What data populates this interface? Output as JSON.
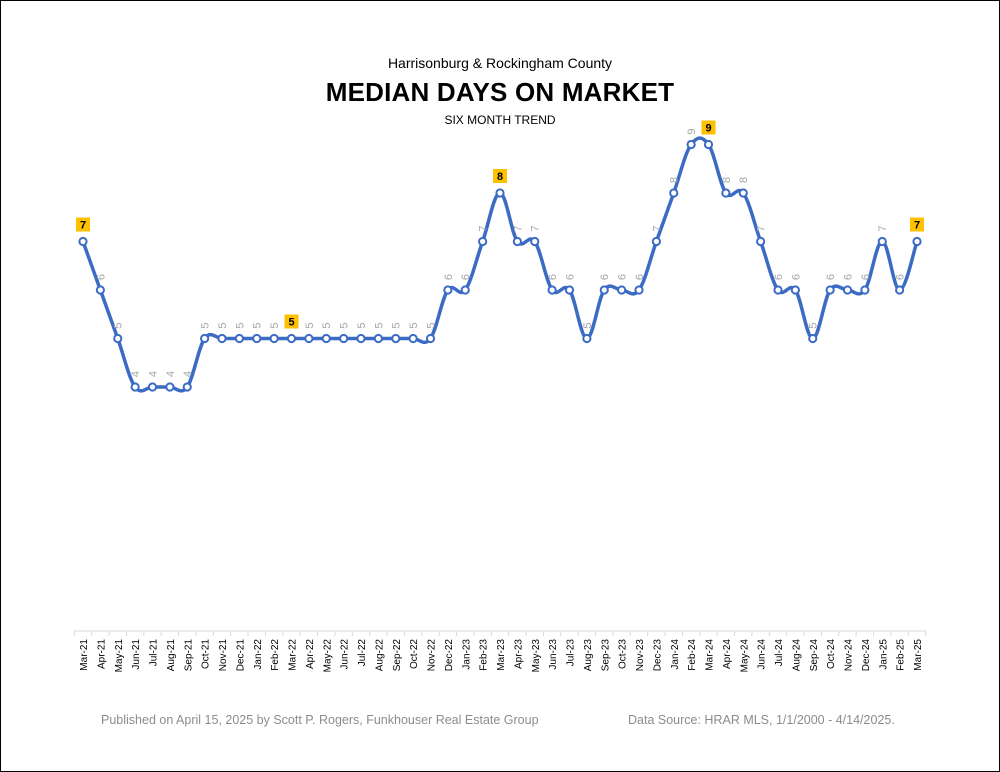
{
  "header": {
    "subtitle": "Harrisonburg & Rockingham County",
    "title": "MEDIAN DAYS ON MARKET",
    "trend_label": "SIX MONTH TREND"
  },
  "footer": {
    "published": "Published on April 15, 2025 by Scott P. Rogers, Funkhouser Real Estate Group",
    "source": "Data Source: HRAR MLS, 1/1/2000 - 4/14/2025."
  },
  "colors": {
    "line": "#3B6BC4",
    "highlight_fill": "#FFC000",
    "label_gray": "#A6A6A6",
    "axis": "#D9D9D9"
  },
  "chart_data": {
    "type": "line",
    "title": "MEDIAN DAYS ON MARKET",
    "subtitle": "SIX MONTH TREND",
    "xlabel": "",
    "ylabel": "",
    "ylim": [
      0,
      10
    ],
    "grid": false,
    "legend": "none",
    "categories": [
      "Mar-21",
      "Apr-21",
      "May-21",
      "Jun-21",
      "Jul-21",
      "Aug-21",
      "Sep-21",
      "Oct-21",
      "Nov-21",
      "Dec-21",
      "Jan-22",
      "Feb-22",
      "Mar-22",
      "Apr-22",
      "May-22",
      "Jun-22",
      "Jul-22",
      "Aug-22",
      "Sep-22",
      "Oct-22",
      "Nov-22",
      "Dec-22",
      "Jan-23",
      "Feb-23",
      "Mar-23",
      "Apr-23",
      "May-23",
      "Jun-23",
      "Jul-23",
      "Aug-23",
      "Sep-23",
      "Oct-23",
      "Nov-23",
      "Dec-23",
      "Jan-24",
      "Feb-24",
      "Mar-24",
      "Apr-24",
      "May-24",
      "Jun-24",
      "Jul-24",
      "Aug-24",
      "Sep-24",
      "Oct-24",
      "Nov-24",
      "Dec-24",
      "Jan-25",
      "Feb-25",
      "Mar-25"
    ],
    "series": [
      {
        "values": [
          7,
          6,
          5,
          4,
          4,
          4,
          4,
          5,
          5,
          5,
          5,
          5,
          5,
          5,
          5,
          5,
          5,
          5,
          5,
          5,
          5,
          6,
          6,
          7,
          8,
          7,
          7,
          6,
          6,
          5,
          6,
          6,
          6,
          7,
          8,
          9,
          9,
          8,
          8,
          7,
          6,
          6,
          5,
          6,
          6,
          6,
          7,
          6,
          7
        ]
      }
    ],
    "highlighted_labels": [
      "Mar-21",
      "Mar-22",
      "Mar-23",
      "Mar-24",
      "Mar-25"
    ]
  }
}
